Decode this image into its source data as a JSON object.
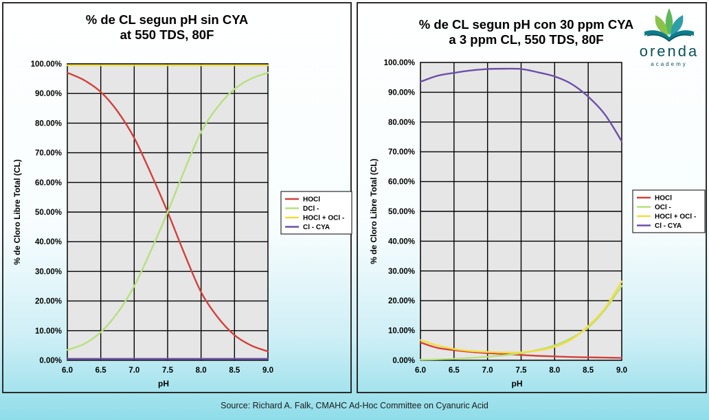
{
  "source": "Source:  Richard A. Falk, CMAHC Ad-Hoc Committee on Cyanuric Acid",
  "logo": {
    "word": "orenda",
    "sub": "academy"
  },
  "chart_data": [
    {
      "type": "line",
      "title": [
        "% de CL segun pH sin CYA",
        "at 550 TDS, 80F"
      ],
      "xlabel": "pH",
      "ylabel": "% de Cloro Libre Total (CL)",
      "xlim": [
        6.0,
        9.0
      ],
      "ylim": [
        0,
        100
      ],
      "x_ticks": [
        "6.0",
        "6.5",
        "7.0",
        "7.5",
        "8.0",
        "8.5",
        "9.0"
      ],
      "y_ticks": [
        "0.00%",
        "10.00%",
        "20.00%",
        "30.00%",
        "40.00%",
        "50.00%",
        "60.00%",
        "70.00%",
        "80.00%",
        "90.00%",
        "100.00%"
      ],
      "grid": true,
      "legend_position": "right",
      "x": [
        6.0,
        6.25,
        6.5,
        6.75,
        7.0,
        7.25,
        7.5,
        7.75,
        8.0,
        8.25,
        8.5,
        8.75,
        9.0
      ],
      "series": [
        {
          "name": "HOCl",
          "color": "#d2403a",
          "values": [
            97.0,
            94.5,
            90.5,
            84.0,
            75.0,
            63.0,
            50.0,
            36.0,
            23.0,
            14.5,
            8.5,
            5.0,
            3.0
          ]
        },
        {
          "name": "DCl -",
          "color": "#b7e07c",
          "values": [
            3.5,
            5.5,
            9.5,
            16.0,
            25.0,
            37.0,
            50.0,
            64.0,
            77.0,
            85.5,
            91.5,
            95.0,
            97.0
          ]
        },
        {
          "name": "HOCl + OCl -",
          "color": "#f3dd3a",
          "values": [
            99.5,
            99.5,
            99.5,
            99.5,
            99.5,
            99.5,
            99.5,
            99.5,
            99.5,
            99.5,
            99.5,
            99.5,
            99.5
          ]
        },
        {
          "name": "Cl - CYA",
          "color": "#6c4fa8",
          "values": [
            0.5,
            0.5,
            0.5,
            0.5,
            0.5,
            0.5,
            0.5,
            0.5,
            0.5,
            0.5,
            0.5,
            0.5,
            0.5
          ]
        }
      ]
    },
    {
      "type": "line",
      "title": [
        "% de CL segun pH con 30 ppm CYA",
        "a 3 ppm CL, 550 TDS, 80F"
      ],
      "xlabel": "pH",
      "ylabel": "% de Cloro Libre Total (CL)",
      "xlim": [
        6.0,
        9.0
      ],
      "ylim": [
        0,
        100
      ],
      "x_ticks": [
        "6.0",
        "6.5",
        "7.0",
        "7.5",
        "8.0",
        "8.5",
        "9.0"
      ],
      "y_ticks": [
        "0.00%",
        "10.00%",
        "20.00%",
        "30.00%",
        "40.00%",
        "50.00%",
        "60.00%",
        "70.00%",
        "80.00%",
        "90.00%",
        "100.00%"
      ],
      "grid": true,
      "legend_position": "right",
      "x": [
        6.0,
        6.25,
        6.5,
        6.75,
        7.0,
        7.25,
        7.5,
        7.75,
        8.0,
        8.25,
        8.5,
        8.75,
        9.0
      ],
      "series": [
        {
          "name": "HOCl",
          "color": "#d2403a",
          "values": [
            6.0,
            4.2,
            3.4,
            2.8,
            2.4,
            2.1,
            1.8,
            1.5,
            1.3,
            1.1,
            1.0,
            0.9,
            0.8
          ]
        },
        {
          "name": "OCl -",
          "color": "#b7e07c",
          "values": [
            0.2,
            0.3,
            0.5,
            0.8,
            1.2,
            1.7,
            2.4,
            3.5,
            5.0,
            7.5,
            11.0,
            17.0,
            25.0
          ]
        },
        {
          "name": "HOCl + OCl -",
          "color": "#f3dd3a",
          "values": [
            6.8,
            5.0,
            3.8,
            3.1,
            2.8,
            2.6,
            2.7,
            3.3,
            4.5,
            7.0,
            11.5,
            17.5,
            26.5
          ]
        },
        {
          "name": "Cl - CYA",
          "color": "#6c4fa8",
          "values": [
            93.5,
            95.5,
            96.5,
            97.3,
            97.8,
            97.9,
            97.8,
            96.7,
            95.3,
            92.8,
            88.5,
            82.5,
            73.5
          ]
        }
      ]
    }
  ]
}
